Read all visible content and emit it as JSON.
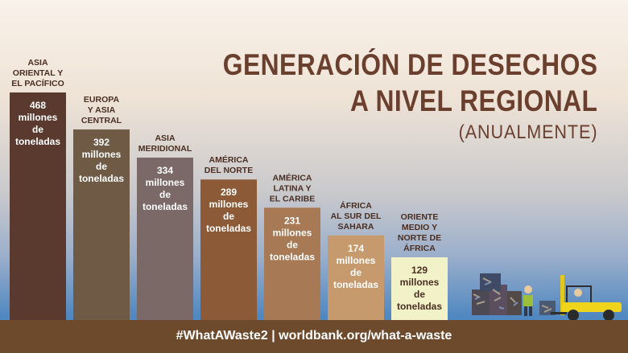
{
  "title": {
    "line1": "GENERACIÓN DE DESECHOS",
    "line2": "A NIVEL REGIONAL",
    "subtitle": "(ANUALMENTE)"
  },
  "footer": {
    "hashtag": "#WhatAWaste2",
    "separator": "|",
    "url": "worldbank.org/what-a-waste"
  },
  "colors": {
    "bars": [
      "#5a3a2f",
      "#6e5a45",
      "#7a6966",
      "#8c5a37",
      "#a77a55",
      "#c69a6c",
      "#f2f2c8"
    ],
    "title": "#6b3f2e",
    "ground": "#6e4a2d"
  },
  "chart_data": {
    "type": "bar",
    "title": "GENERACIÓN DE DESECHOS A NIVEL REGIONAL",
    "subtitle": "(ANUALMENTE)",
    "unit": "millones de toneladas",
    "categories": [
      "ASIA ORIENTAL Y EL PACÍFICO",
      "EUROPA Y ASIA CENTRAL",
      "ASIA MERIDIONAL",
      "AMÉRICA DEL NORTE",
      "AMÉRICA LATINA Y EL CARIBE",
      "ÁFRICA AL SUR DEL SAHARA",
      "ORIENTE MEDIO Y NORTE DE ÁFRICA"
    ],
    "label_lines": [
      [
        "ASIA",
        "ORIENTAL Y",
        "EL PACÍFICO"
      ],
      [
        "EUROPA",
        "Y ASIA",
        "CENTRAL"
      ],
      [
        "ASIA",
        "MERIDIONAL"
      ],
      [
        "AMÉRICA",
        "DEL NORTE"
      ],
      [
        "AMÉRICA",
        "LATINA Y",
        "EL CARIBE"
      ],
      [
        "ÁFRICA",
        "AL SUR DEL",
        "SAHARA"
      ],
      [
        "ORIENTE",
        "MEDIO Y",
        "NORTE DE",
        "ÁFRICA"
      ]
    ],
    "values": [
      468,
      392,
      334,
      289,
      231,
      174,
      129
    ],
    "value_text_lines": [
      "millones",
      "de",
      "toneladas"
    ],
    "ylim": [
      0,
      468
    ],
    "grid": false
  }
}
